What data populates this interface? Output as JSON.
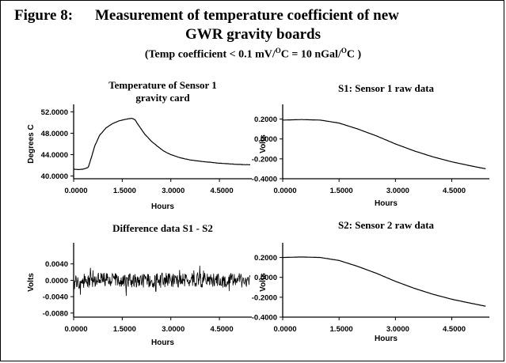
{
  "figure": {
    "label": "Figure 8:",
    "title_line1": "Measurement of temperature coefficient of new",
    "title_line2": "GWR gravity boards",
    "subtitle_a": "(Temp coefficient < 0.1 mV/",
    "subtitle_sup1": "O",
    "subtitle_b": "C = 10 nGal/",
    "subtitle_sup2": "O",
    "subtitle_c": "C )"
  },
  "chart_data": [
    {
      "type": "line",
      "title": [
        "Temperature of Sensor 1",
        "gravity card"
      ],
      "xlabel": "Hours",
      "ylabel": "Degrees C",
      "xlim": [
        0,
        5.5
      ],
      "ylim": [
        39.5,
        52.5
      ],
      "xticks": [
        0,
        1.5,
        3.0,
        4.5
      ],
      "xtick_labels": [
        "0.0000",
        "1.5000",
        "3.0000",
        "4.5000"
      ],
      "yticks": [
        40,
        44,
        48,
        52
      ],
      "ytick_labels": [
        "40.0000",
        "44.0000",
        "48.0000",
        "52.0000"
      ],
      "grid": false,
      "series": [
        {
          "x": [
            0,
            0.15,
            0.3,
            0.45,
            0.55,
            0.65,
            0.8,
            1.0,
            1.2,
            1.4,
            1.6,
            1.8,
            1.9,
            2.0,
            2.2,
            2.4,
            2.6,
            2.8,
            3.0,
            3.3,
            3.6,
            4.0,
            4.5,
            5.0,
            5.45
          ],
          "y": [
            41.3,
            41.2,
            41.3,
            41.6,
            43.5,
            45.6,
            47.6,
            49.0,
            49.8,
            50.3,
            50.6,
            50.8,
            50.5,
            49.5,
            47.8,
            46.5,
            45.5,
            44.6,
            44.0,
            43.4,
            43.0,
            42.7,
            42.4,
            42.2,
            42.1
          ]
        }
      ]
    },
    {
      "type": "line",
      "title": [
        "S1: Sensor 1 raw data"
      ],
      "xlabel": "Hours",
      "ylabel": "Volts",
      "xlim": [
        0,
        5.5
      ],
      "ylim": [
        -0.4,
        0.3
      ],
      "xticks": [
        0,
        1.5,
        3.0,
        4.5
      ],
      "xtick_labels": [
        "0.0000",
        "1.5000",
        "3.0000",
        "4.5000"
      ],
      "yticks": [
        -0.4,
        -0.2,
        0.0,
        0.2
      ],
      "ytick_labels": [
        "-0.4000",
        "-0.2000",
        "0.0000",
        "0.2000"
      ],
      "grid": false,
      "series": [
        {
          "x": [
            0,
            0.5,
            1.0,
            1.5,
            2.0,
            2.5,
            3.0,
            3.5,
            4.0,
            4.5,
            5.0,
            5.4
          ],
          "y": [
            0.19,
            0.195,
            0.19,
            0.16,
            0.1,
            0.03,
            -0.05,
            -0.12,
            -0.18,
            -0.23,
            -0.27,
            -0.3
          ]
        }
      ]
    },
    {
      "type": "line",
      "title": [
        "Difference data S1 - S2"
      ],
      "xlabel": "Hours",
      "ylabel": "Volts",
      "xlim": [
        0,
        5.5
      ],
      "ylim": [
        -0.009,
        0.008
      ],
      "xticks": [
        0,
        1.5,
        3.0,
        4.5
      ],
      "xtick_labels": [
        "0.0000",
        "1.5000",
        "3.0000",
        "4.5000"
      ],
      "yticks": [
        -0.008,
        -0.004,
        0.0,
        0.004
      ],
      "ytick_labels": [
        "-0.0080",
        "-0.0040",
        "0.0000",
        "0.0040"
      ],
      "grid": false,
      "series": [
        {
          "x": [
            0,
            0.5,
            1.0,
            1.5,
            2.0,
            2.5,
            3.0,
            3.5,
            4.0,
            4.5,
            5.0,
            5.45
          ],
          "y": [
            -0.0005,
            0.0,
            0.0,
            0.0,
            0.0,
            0.0,
            0.0,
            0.0,
            0.0,
            0.0,
            0.0,
            0.0
          ]
        }
      ]
    },
    {
      "type": "line",
      "title": [
        "S2: Sensor 2 raw data"
      ],
      "xlabel": "Hours",
      "ylabel": "Volts",
      "xlim": [
        0,
        5.5
      ],
      "ylim": [
        -0.4,
        0.3
      ],
      "xticks": [
        0,
        1.5,
        3.0,
        4.5
      ],
      "xtick_labels": [
        "0.0000",
        "1.5000",
        "3.0000",
        "4.5000"
      ],
      "yticks": [
        -0.4,
        -0.2,
        0.0,
        0.2
      ],
      "ytick_labels": [
        "-0.4000",
        "-0.2000",
        "0.0000",
        "0.2000"
      ],
      "grid": false,
      "series": [
        {
          "x": [
            0,
            0.5,
            1.0,
            1.5,
            2.0,
            2.5,
            3.0,
            3.5,
            4.0,
            4.5,
            5.0,
            5.4
          ],
          "y": [
            0.2,
            0.205,
            0.2,
            0.17,
            0.11,
            0.04,
            -0.04,
            -0.11,
            -0.17,
            -0.22,
            -0.26,
            -0.29
          ]
        }
      ]
    }
  ]
}
